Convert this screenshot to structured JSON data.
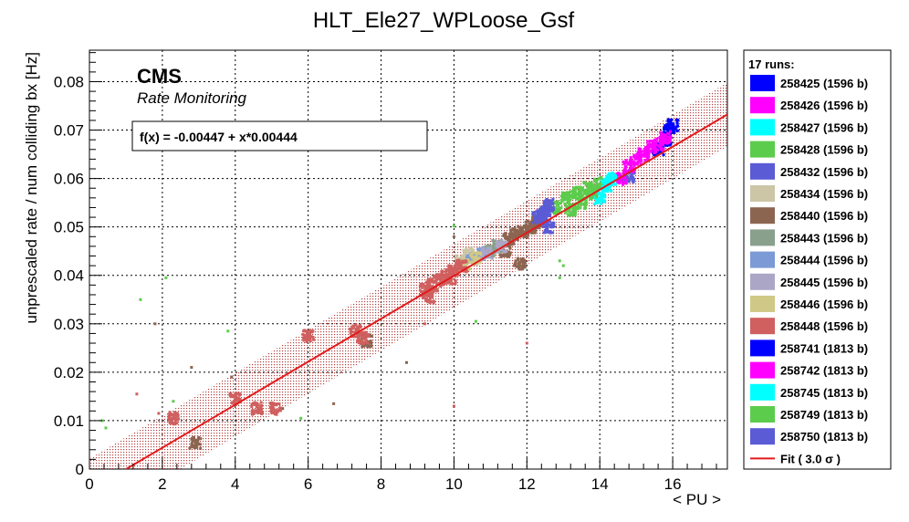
{
  "chart_data": {
    "type": "scatter",
    "title": "HLT_Ele27_WPLoose_Gsf",
    "xlabel": "< PU >",
    "ylabel": "unprescaled rate / num colliding bx [Hz]",
    "xlim": [
      0,
      17.5
    ],
    "ylim": [
      0,
      0.0865
    ],
    "xticks": [
      0,
      2,
      4,
      6,
      8,
      10,
      12,
      14,
      16
    ],
    "yticks": [
      0,
      0.01,
      0.02,
      0.03,
      0.04,
      0.05,
      0.06,
      0.07,
      0.08
    ],
    "grid": true,
    "legend_position": "right",
    "cms_label": "CMS",
    "subtitle": "Rate Monitoring",
    "fit_formula": "f(x) = -0.00447 + x*0.00444",
    "fit": {
      "intercept": -0.00447,
      "slope": 0.00444,
      "band_sigma": 3.0,
      "band_halfwidth": 0.0066,
      "color": "#e31a1c"
    },
    "legend_title": "17 runs:",
    "fit_legend_label": "Fit ( 3.0 σ )",
    "series": [
      {
        "name": "258425 (1596 b)",
        "color": "#0000ff",
        "x": [],
        "y": []
      },
      {
        "name": "258426 (1596 b)",
        "color": "#ff00ff",
        "x": [],
        "y": []
      },
      {
        "name": "258427 (1596 b)",
        "color": "#00ffff",
        "x": [],
        "y": []
      },
      {
        "name": "258428 (1596 b)",
        "color": "#5ccc4c",
        "x": [
          12.8,
          13.1,
          13.4,
          13.7,
          14.0,
          12.9,
          13.0,
          12.9,
          10.0,
          10.6,
          2.1,
          1.4,
          5.8,
          3.8
        ],
        "y": [
          0.054,
          0.056,
          0.057,
          0.058,
          0.059,
          0.043,
          0.042,
          0.0395,
          0.0502,
          0.0305,
          0.0395,
          0.035,
          0.0105,
          0.0285
        ]
      },
      {
        "name": "258432 (1596 b)",
        "color": "#5b5bd6",
        "x": [
          12.4,
          12.6,
          12.5,
          14.8
        ],
        "y": [
          0.0525,
          0.0545,
          0.0535,
          0.0605
        ]
      },
      {
        "name": "258434 (1596 b)",
        "color": "#ccc6a6",
        "x": [
          10.2,
          10.4
        ],
        "y": [
          0.043,
          0.0445
        ]
      },
      {
        "name": "258440 (1596 b)",
        "color": "#8c6551",
        "x": [
          11.5,
          11.7,
          11.9,
          12.1,
          12.3,
          11.4,
          10.0,
          11.8,
          8.7,
          2.8,
          2.9,
          6.7,
          3.9,
          5.3,
          7.6,
          1.8
        ],
        "y": [
          0.0475,
          0.0485,
          0.049,
          0.05,
          0.051,
          0.045,
          0.048,
          0.0425,
          0.022,
          0.021,
          0.0055,
          0.0135,
          0.019,
          0.0125,
          0.0265,
          0.03
        ]
      },
      {
        "name": "258443 (1596 b)",
        "color": "#88a08c",
        "x": [
          11.0,
          11.2
        ],
        "y": [
          0.045,
          0.046
        ]
      },
      {
        "name": "258444 (1596 b)",
        "color": "#7b9ad6",
        "x": [
          10.5,
          10.8
        ],
        "y": [
          0.0435,
          0.0445
        ]
      },
      {
        "name": "258445 (1596 b)",
        "color": "#aca6c6",
        "x": [
          10.9,
          11.3
        ],
        "y": [
          0.0445,
          0.046
        ]
      },
      {
        "name": "258446 (1596 b)",
        "color": "#d0c886",
        "x": [
          10.3,
          10.6
        ],
        "y": [
          0.042,
          0.0435
        ]
      },
      {
        "name": "258448 (1596 b)",
        "color": "#d05f5f",
        "x": [
          9.2,
          9.4,
          9.6,
          9.8,
          10.0,
          10.2,
          9.3,
          9.9,
          12.0,
          1.3,
          1.9,
          2.3,
          4.0,
          4.6,
          5.1,
          6.0,
          7.3,
          7.5,
          9.2,
          10.0
        ],
        "y": [
          0.037,
          0.038,
          0.039,
          0.04,
          0.041,
          0.042,
          0.0355,
          0.0395,
          0.026,
          0.0155,
          0.0115,
          0.0105,
          0.0145,
          0.0125,
          0.0125,
          0.0275,
          0.0285,
          0.027,
          0.03,
          0.013
        ]
      },
      {
        "name": "258741 (1813 b)",
        "color": "#0000ff",
        "x": [
          15.6,
          15.8,
          15.9,
          16.0
        ],
        "y": [
          0.066,
          0.068,
          0.07,
          0.071
        ]
      },
      {
        "name": "258742 (1813 b)",
        "color": "#ff00ff",
        "x": [
          14.6,
          14.8,
          15.0,
          15.2,
          15.4,
          15.6,
          15.8
        ],
        "y": [
          0.06,
          0.0625,
          0.064,
          0.065,
          0.0665,
          0.067,
          0.0685
        ]
      },
      {
        "name": "258745 (1813 b)",
        "color": "#00ffff",
        "x": [
          14.0,
          14.2,
          14.3
        ],
        "y": [
          0.056,
          0.0585,
          0.06
        ]
      },
      {
        "name": "258749 (1813 b)",
        "color": "#5ccc4c",
        "x": [
          13.2,
          13.5,
          13.8,
          0.35,
          0.45,
          2.3
        ],
        "y": [
          0.0535,
          0.055,
          0.057,
          0.01,
          0.0085,
          0.014
        ]
      },
      {
        "name": "258750 (1813 b)",
        "color": "#5b5bd6",
        "x": [
          12.3,
          12.6
        ],
        "y": [
          0.052,
          0.05
        ]
      }
    ]
  }
}
